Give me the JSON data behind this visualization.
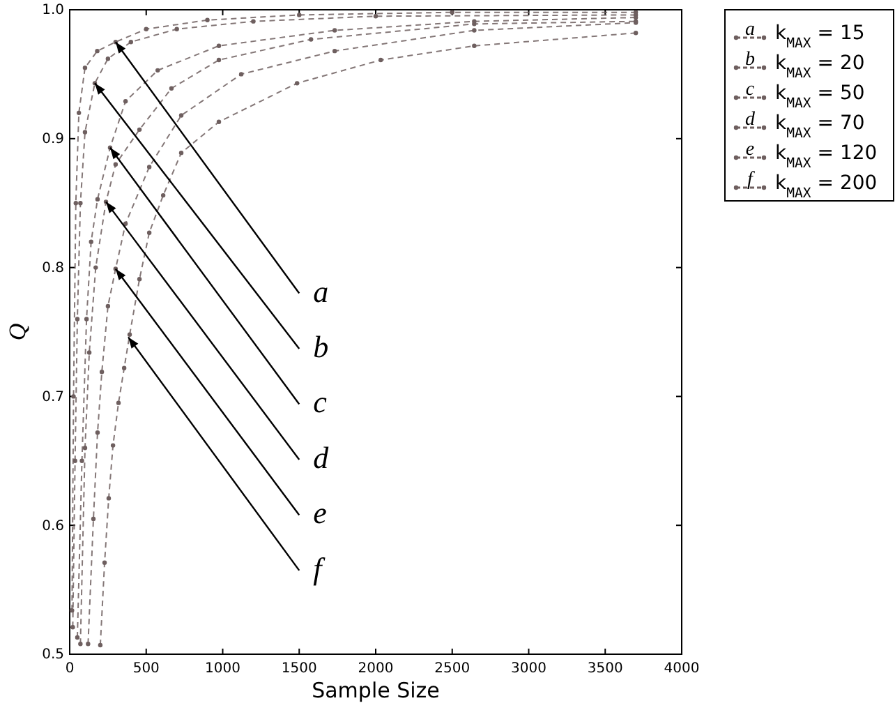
{
  "chart_data": {
    "type": "line",
    "xlabel": "Sample Size",
    "ylabel": "Q",
    "xlim": [
      0,
      4000
    ],
    "ylim": [
      0.5,
      1.0
    ],
    "xticks": [
      0,
      500,
      1000,
      1500,
      2000,
      2500,
      3000,
      3500,
      4000
    ],
    "yticks": [
      0.5,
      0.6,
      0.7,
      0.8,
      0.9,
      {
        "value": 1.0,
        "label": "1.0"
      }
    ],
    "grid": false,
    "legend": "top right",
    "marker": "circle",
    "line_style": "dashed",
    "annotations": [
      {
        "text": "a",
        "x": 300,
        "y": 0.975
      },
      {
        "text": "b",
        "x": 164,
        "y": 0.943
      },
      {
        "text": "c",
        "x": 264,
        "y": 0.893
      },
      {
        "text": "d",
        "x": 237,
        "y": 0.851
      },
      {
        "text": "e",
        "x": 300,
        "y": 0.799
      },
      {
        "text": "f",
        "x": 383,
        "y": 0.746
      }
    ],
    "series": [
      {
        "name": "k$_{MAX}$ = 15",
        "color": "#6e5f5f",
        "x": [
          15,
          25,
          40,
          60,
          100,
          180,
          300,
          500,
          900,
          1500,
          2500,
          3700
        ],
        "values": [
          0.534,
          0.7,
          0.85,
          0.92,
          0.955,
          0.968,
          0.975,
          0.985,
          0.992,
          0.996,
          0.998,
          0.998
        ]
      },
      {
        "name": "k$_{MAX}$ = 20",
        "color": "#6e5f5f",
        "x": [
          20,
          35,
          50,
          70,
          100,
          164,
          250,
          400,
          700,
          1200,
          2000,
          3700
        ],
        "values": [
          0.521,
          0.65,
          0.76,
          0.85,
          0.905,
          0.943,
          0.962,
          0.975,
          0.985,
          0.991,
          0.995,
          0.996
        ]
      },
      {
        "name": "k$_{MAX}$ = 50",
        "color": "#6e5f5f",
        "x": [
          50,
          80,
          110,
          140,
          182,
          264,
          365,
          575,
          975,
          1732,
          2644,
          3700
        ],
        "values": [
          0.513,
          0.65,
          0.76,
          0.82,
          0.853,
          0.893,
          0.929,
          0.953,
          0.972,
          0.984,
          0.991,
          0.994
        ]
      },
      {
        "name": "k$_{MAX}$ = 70",
        "color": "#6e5f5f",
        "x": [
          70,
          100,
          128,
          170,
          237,
          300,
          456,
          665,
          975,
          1577,
          2644,
          3700
        ],
        "values": [
          0.508,
          0.66,
          0.734,
          0.8,
          0.851,
          0.88,
          0.907,
          0.939,
          0.961,
          0.977,
          0.989,
          0.991
        ]
      },
      {
        "name": "k$_{MAX}$ = 120",
        "color": "#6e5f5f",
        "x": [
          120,
          155,
          182,
          210,
          250,
          300,
          365,
          520,
          729,
          1121,
          1732,
          2644,
          3700
        ],
        "values": [
          0.508,
          0.605,
          0.672,
          0.719,
          0.77,
          0.799,
          0.834,
          0.878,
          0.918,
          0.95,
          0.968,
          0.984,
          0.99
        ]
      },
      {
        "name": "k$_{MAX}$ = 200",
        "color": "#6e5f5f",
        "x": [
          200,
          228,
          255,
          283,
          319,
          356,
          392,
          456,
          520,
          611,
          729,
          975,
          1486,
          2033,
          2644,
          3700
        ],
        "values": [
          0.507,
          0.571,
          0.621,
          0.662,
          0.695,
          0.722,
          0.748,
          0.791,
          0.827,
          0.856,
          0.889,
          0.913,
          0.943,
          0.961,
          0.972,
          0.982
        ]
      }
    ]
  }
}
